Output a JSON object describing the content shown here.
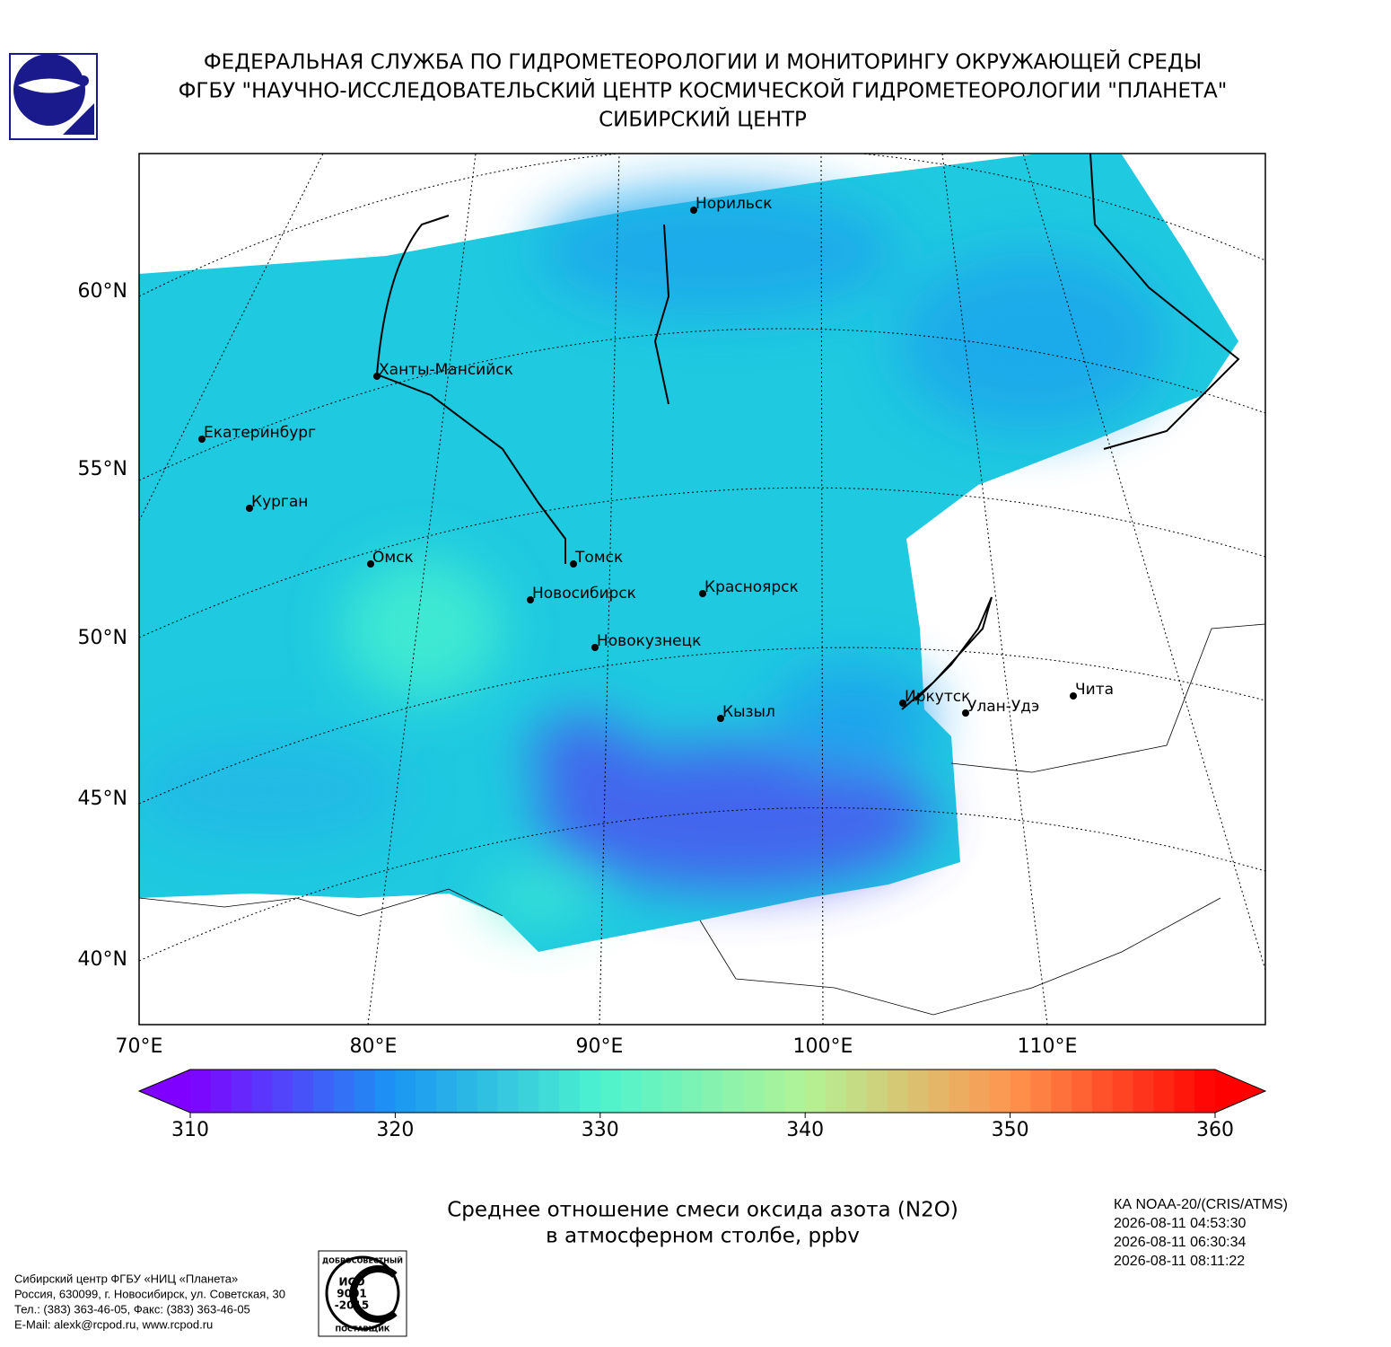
{
  "header": {
    "lines": [
      "ФЕДЕРАЛЬНАЯ СЛУЖБА ПО ГИДРОМЕТЕОРОЛОГИИ И МОНИТОРИНГУ ОКРУЖАЮЩЕЙ СРЕДЫ",
      "ФГБУ \"НАУЧНО-ИССЛЕДОВАТЕЛЬСКИЙ ЦЕНТР КОСМИЧЕСКОЙ ГИДРОМЕТЕОРОЛОГИИ \"ПЛАНЕТА\"",
      "СИБИРСКИЙ ЦЕНТР"
    ]
  },
  "map": {
    "lat_labels": [
      {
        "value": 60,
        "label": "60°N"
      },
      {
        "value": 55,
        "label": "55°N"
      },
      {
        "value": 50,
        "label": "50°N"
      },
      {
        "value": 45,
        "label": "45°N"
      },
      {
        "value": 40,
        "label": "40°N"
      }
    ],
    "lon_labels": [
      {
        "value": 70,
        "label": "70°E"
      },
      {
        "value": 80,
        "label": "80°E"
      },
      {
        "value": 90,
        "label": "90°E"
      },
      {
        "value": 100,
        "label": "100°E"
      },
      {
        "value": 110,
        "label": "110°E"
      }
    ],
    "cities": [
      "Норильск",
      "Ханты-Мансийск",
      "Екатеринбург",
      "Курган",
      "Омск",
      "Томск",
      "Новосибирск",
      "Красноярск",
      "Новокузнецк",
      "Кызыл",
      "Иркутск",
      "Улан-Удэ",
      "Чита"
    ]
  },
  "colorbar": {
    "range": [
      310,
      360
    ],
    "ticks": [
      310,
      320,
      330,
      340,
      350,
      360
    ],
    "colormap": [
      "#7f00ff",
      "#1996f3",
      "#4df3ce",
      "#b2f396",
      "#ff964f",
      "#ff0000"
    ]
  },
  "caption": {
    "lines": [
      "Среднее отношение смеси оксида азота (N2O)",
      "в атмосферном столбе, ppbv"
    ]
  },
  "satellite": {
    "lines": [
      "КА NOAA-20/(CRIS/ATMS)",
      "2026-08-11 04:53:30",
      "2026-08-11 06:30:34",
      "2026-08-11 08:11:22"
    ]
  },
  "footer": {
    "lines": [
      "Сибирский центр ФГБУ «НИЦ «Планета»",
      "Россия, 630099, г. Новосибирск, ул. Советская, 30",
      "Тел.: (383) 363-46-05, Факс: (383) 363-46-05",
      "E-Mail: alexk@rcpod.ru, www.rcpod.ru"
    ]
  },
  "iso_logo": {
    "top": "ДОБРОСОВЕСТНЫЙ",
    "lines": [
      "ИСО",
      "9001",
      "-2015"
    ],
    "bottom": "ПОСТАВЩИК"
  }
}
